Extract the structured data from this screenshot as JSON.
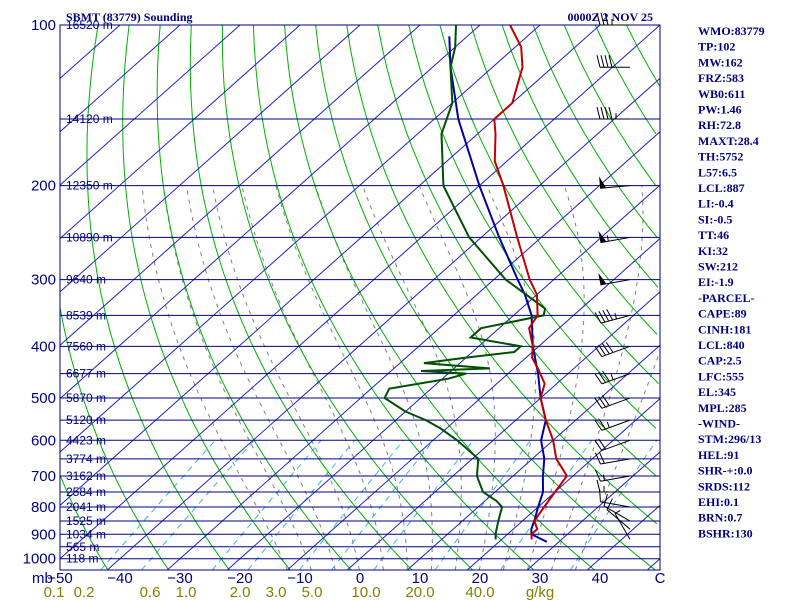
{
  "header": {
    "station": "SBMT (83779) Sounding",
    "time": "0000Z  2 NOV 25"
  },
  "indices": [
    "WMO:83779",
    "TP:102",
    "MW:162",
    "FRZ:583",
    "WB0:611",
    "PW:1.46",
    "RH:72.8",
    "MAXT:28.4",
    "TH:5752",
    "L57:6.5",
    "LCL:887",
    "LI:-0.4",
    "SI:-0.5",
    "TT:46",
    "KI:32",
    "SW:212",
    "EI:-1.9",
    "-PARCEL-",
    "CAPE:89",
    "CINH:181",
    "LCL:840",
    "CAP:2.5",
    "LFC:555",
    "EL:345",
    "MPL:285",
    "-WIND-",
    "STM:296/13",
    "HEL:91",
    "SHR-+:0.0",
    "SRDS:112",
    "EHI:0.1",
    "BRN:0.7",
    "BSHR:130"
  ],
  "colors": {
    "isobar": "#000080",
    "isotherm": "#2020c0",
    "dry_adiabat": "#00b000",
    "moist_adiabat": "#808080",
    "mixing_ratio": "#40b0e0",
    "temperature": "#c00000",
    "dewpoint": "#005000",
    "parcel": "#0000a0"
  },
  "chart_data": {
    "type": "skew-t",
    "title": "SBMT (83779) Sounding",
    "ylabel": "mb",
    "xlabel": "°C",
    "pressure_ticks": [
      {
        "p": 100,
        "label": "100"
      },
      {
        "p": 200,
        "label": "200"
      },
      {
        "p": 300,
        "label": "300"
      },
      {
        "p": 400,
        "label": "400"
      },
      {
        "p": 500,
        "label": "500"
      },
      {
        "p": 600,
        "label": "600"
      },
      {
        "p": 700,
        "label": "700"
      },
      {
        "p": 800,
        "label": "800"
      },
      {
        "p": 900,
        "label": "900"
      },
      {
        "p": 1000,
        "label": "1000"
      }
    ],
    "temperature_ticks": [
      {
        "t": -50,
        "label": "−50"
      },
      {
        "t": -40,
        "label": "−40"
      },
      {
        "t": -30,
        "label": "−30"
      },
      {
        "t": -20,
        "label": "−20"
      },
      {
        "t": -10,
        "label": "−10"
      },
      {
        "t": 0,
        "label": "0"
      },
      {
        "t": 10,
        "label": "10"
      },
      {
        "t": 20,
        "label": "20"
      },
      {
        "t": 30,
        "label": "30"
      },
      {
        "t": 40,
        "label": "40"
      },
      {
        "t": 50,
        "label": "C"
      }
    ],
    "mixing_ratio_labels": [
      {
        "t": -51,
        "label": "0.1"
      },
      {
        "t": -46,
        "label": "0.2"
      },
      {
        "t": -35,
        "label": "0.6"
      },
      {
        "t": -29,
        "label": "1.0"
      },
      {
        "t": -20,
        "label": "2.0"
      },
      {
        "t": -14,
        "label": "3.0"
      },
      {
        "t": -8,
        "label": "5.0"
      },
      {
        "t": 1,
        "label": "10.0"
      },
      {
        "t": 10,
        "label": "20.0"
      },
      {
        "t": 20,
        "label": "40.0"
      },
      {
        "t": 30,
        "label": "g/kg"
      }
    ],
    "height_levels": [
      {
        "p": 100,
        "label": "16520 m"
      },
      {
        "p": 150,
        "label": "14120 m"
      },
      {
        "p": 200,
        "label": "12350 m"
      },
      {
        "p": 250,
        "label": "10890 m"
      },
      {
        "p": 300,
        "label": "9640 m"
      },
      {
        "p": 350,
        "label": "8539 m"
      },
      {
        "p": 400,
        "label": "7560 m"
      },
      {
        "p": 450,
        "label": "6677 m"
      },
      {
        "p": 500,
        "label": "5870 m"
      },
      {
        "p": 550,
        "label": "5120 m"
      },
      {
        "p": 600,
        "label": "4423 m"
      },
      {
        "p": 650,
        "label": "3774 m"
      },
      {
        "p": 700,
        "label": "3162 m"
      },
      {
        "p": 750,
        "label": "2584 m"
      },
      {
        "p": 800,
        "label": "2041 m"
      },
      {
        "p": 850,
        "label": "1525 m"
      },
      {
        "p": 900,
        "label": "1034 m"
      },
      {
        "p": 950,
        "label": "565 m"
      },
      {
        "p": 1000,
        "label": "118 m"
      }
    ],
    "temperature_profile": [
      [
        920,
        25
      ],
      [
        900,
        24
      ],
      [
        880,
        24
      ],
      [
        850,
        22
      ],
      [
        800,
        21
      ],
      [
        750,
        20
      ],
      [
        700,
        19
      ],
      [
        650,
        14
      ],
      [
        600,
        10
      ],
      [
        550,
        5
      ],
      [
        500,
        0
      ],
      [
        470,
        -2
      ],
      [
        440,
        -6
      ],
      [
        420,
        -9
      ],
      [
        400,
        -11
      ],
      [
        370,
        -15
      ],
      [
        350,
        -16
      ],
      [
        320,
        -20
      ],
      [
        300,
        -24
      ],
      [
        250,
        -34
      ],
      [
        200,
        -46
      ],
      [
        180,
        -52
      ],
      [
        160,
        -57
      ],
      [
        150,
        -60
      ],
      [
        140,
        -60
      ],
      [
        120,
        -65
      ],
      [
        110,
        -69
      ],
      [
        100,
        -75
      ]
    ],
    "dewpoint_profile": [
      [
        920,
        19
      ],
      [
        900,
        18
      ],
      [
        850,
        16
      ],
      [
        800,
        14
      ],
      [
        780,
        12
      ],
      [
        750,
        8
      ],
      [
        700,
        4
      ],
      [
        650,
        1
      ],
      [
        600,
        -6
      ],
      [
        570,
        -11
      ],
      [
        550,
        -15
      ],
      [
        530,
        -20
      ],
      [
        500,
        -26
      ],
      [
        480,
        -27
      ],
      [
        460,
        -19
      ],
      [
        450,
        -17
      ],
      [
        445,
        -25
      ],
      [
        440,
        -14
      ],
      [
        430,
        -26
      ],
      [
        420,
        -20
      ],
      [
        410,
        -13
      ],
      [
        400,
        -13
      ],
      [
        385,
        -23
      ],
      [
        370,
        -23
      ],
      [
        350,
        -15
      ],
      [
        340,
        -16
      ],
      [
        300,
        -28
      ],
      [
        250,
        -42
      ],
      [
        200,
        -56
      ],
      [
        160,
        -66
      ],
      [
        140,
        -70
      ],
      [
        120,
        -77
      ],
      [
        110,
        -80
      ],
      [
        100,
        -84
      ]
    ],
    "parcel_profile": [
      [
        930,
        28
      ],
      [
        900,
        24
      ],
      [
        880,
        23
      ],
      [
        850,
        22
      ],
      [
        800,
        20
      ],
      [
        750,
        18
      ],
      [
        700,
        15
      ],
      [
        650,
        12
      ],
      [
        600,
        8
      ],
      [
        550,
        5
      ],
      [
        500,
        0
      ],
      [
        450,
        -5
      ],
      [
        400,
        -11
      ],
      [
        350,
        -17
      ],
      [
        320,
        -22
      ],
      [
        300,
        -26
      ],
      [
        250,
        -37
      ],
      [
        200,
        -50
      ],
      [
        150,
        -66
      ],
      [
        120,
        -77
      ],
      [
        105,
        -83
      ]
    ],
    "wind_barbs": [
      {
        "p": 920,
        "dir": 330,
        "spd": 5
      },
      {
        "p": 880,
        "dir": 310,
        "spd": 10
      },
      {
        "p": 850,
        "dir": 300,
        "spd": 10
      },
      {
        "p": 800,
        "dir": 280,
        "spd": 10
      },
      {
        "p": 750,
        "dir": 270,
        "spd": 15
      },
      {
        "p": 700,
        "dir": 260,
        "spd": 15
      },
      {
        "p": 650,
        "dir": 260,
        "spd": 20
      },
      {
        "p": 600,
        "dir": 250,
        "spd": 20
      },
      {
        "p": 550,
        "dir": 250,
        "spd": 25
      },
      {
        "p": 500,
        "dir": 250,
        "spd": 30
      },
      {
        "p": 450,
        "dir": 250,
        "spd": 35
      },
      {
        "p": 400,
        "dir": 250,
        "spd": 40
      },
      {
        "p": 350,
        "dir": 255,
        "spd": 45
      },
      {
        "p": 300,
        "dir": 260,
        "spd": 50
      },
      {
        "p": 250,
        "dir": 260,
        "spd": 55
      },
      {
        "p": 200,
        "dir": 265,
        "spd": 50
      },
      {
        "p": 150,
        "dir": 270,
        "spd": 45
      },
      {
        "p": 120,
        "dir": 270,
        "spd": 40
      },
      {
        "p": 100,
        "dir": 270,
        "spd": 35
      }
    ]
  }
}
